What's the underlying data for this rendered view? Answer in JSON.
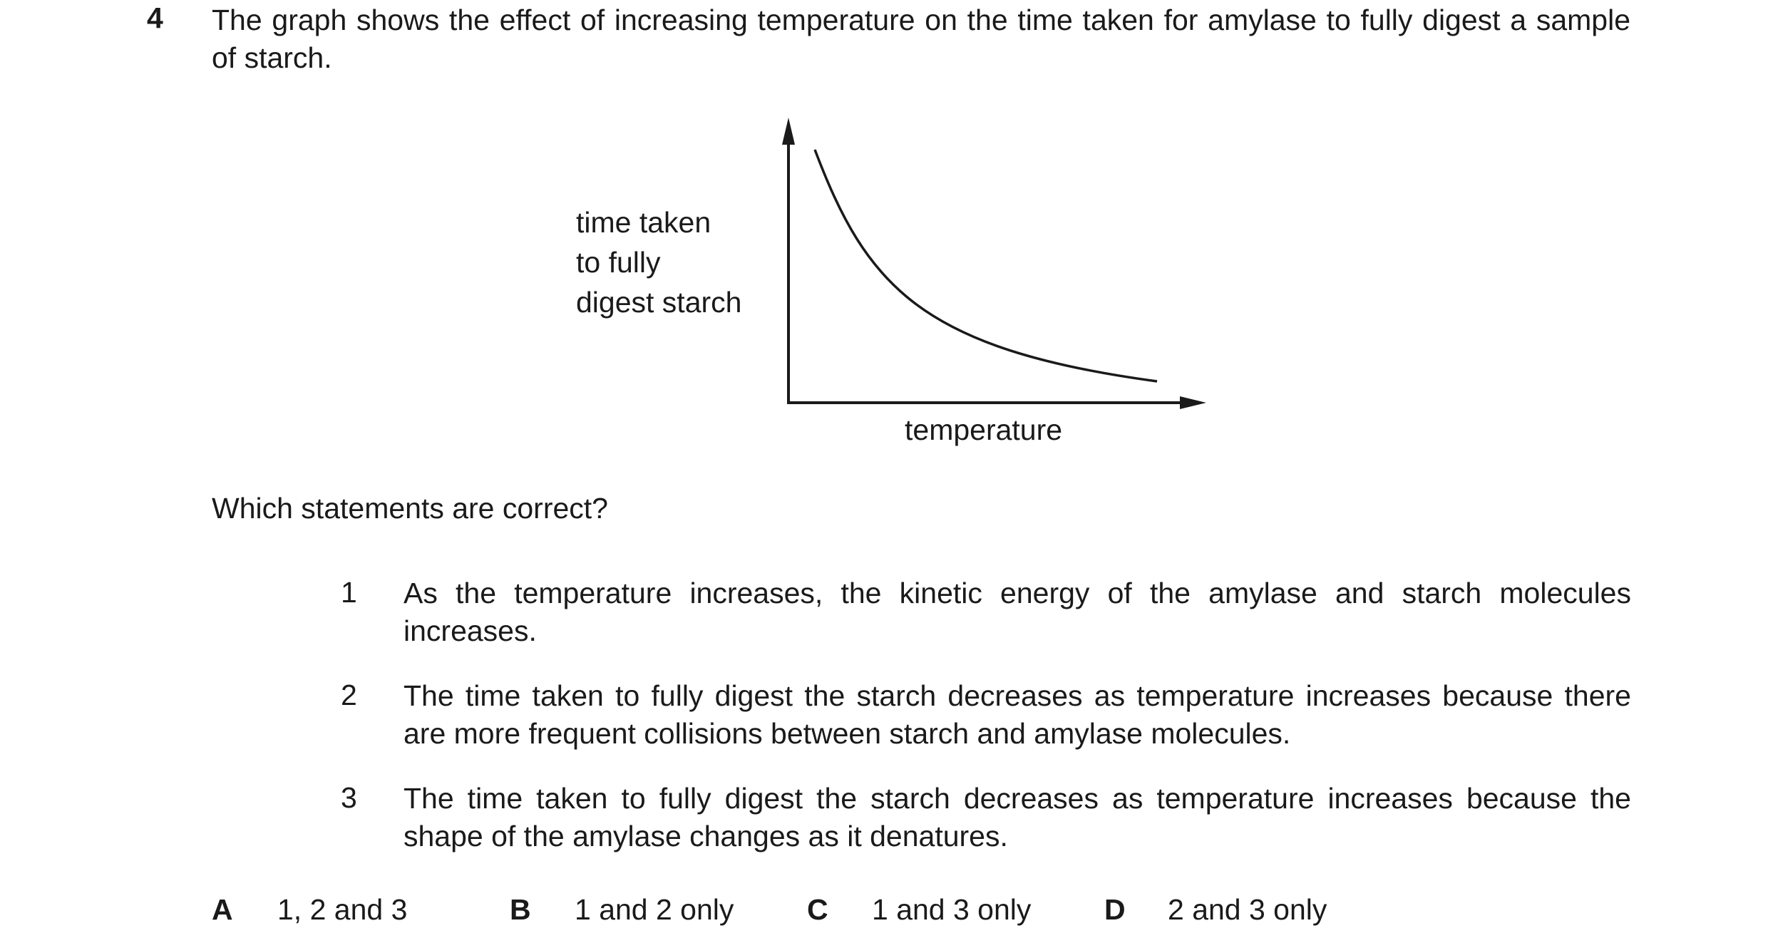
{
  "question": {
    "number": "4",
    "stem": "The graph shows the effect of increasing temperature on the time taken for amylase to fully digest a sample of starch.",
    "prompt": "Which statements are correct?"
  },
  "chart_data": {
    "type": "line",
    "ylabel_lines": [
      "time taken",
      "to fully",
      "digest starch"
    ],
    "xlabel": "temperature",
    "axis_ticks": false,
    "grid": false,
    "curve": "decreasing, levelling off"
  },
  "statements": [
    {
      "num": "1",
      "text": "As the temperature increases, the kinetic energy of the amylase and starch molecules increases."
    },
    {
      "num": "2",
      "text": "The time taken to fully digest the starch decreases as temperature increases because there are more frequent collisions between starch and amylase molecules."
    },
    {
      "num": "3",
      "text": "The time taken to fully digest the starch decreases as temperature increases because the shape of the amylase changes as it denatures."
    }
  ],
  "options": [
    {
      "letter": "A",
      "text": "1, 2 and 3"
    },
    {
      "letter": "B",
      "text": "1 and 2 only"
    },
    {
      "letter": "C",
      "text": "1 and 3 only"
    },
    {
      "letter": "D",
      "text": "2 and 3 only"
    }
  ]
}
